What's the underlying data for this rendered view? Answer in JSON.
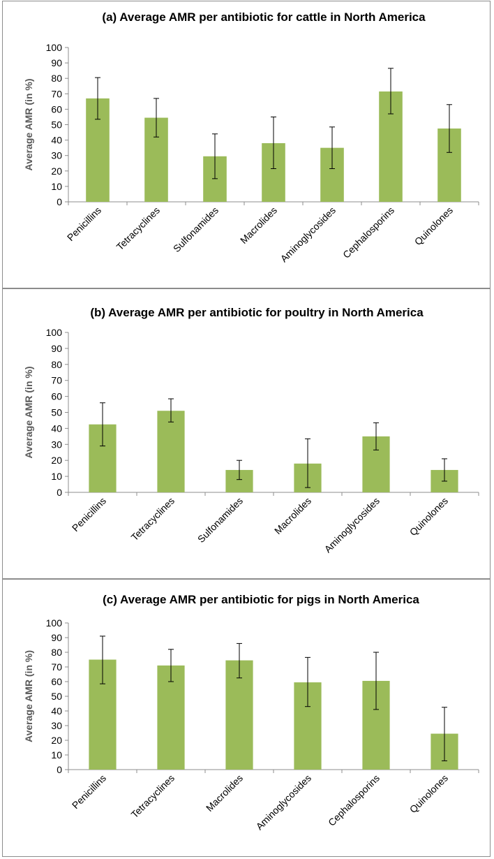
{
  "chart_data": [
    {
      "type": "bar",
      "title": "(a) Average AMR per antibiotic for cattle in North America",
      "ylabel": "Average AMR (in %)",
      "xlabel": "",
      "ylim": [
        0,
        100
      ],
      "yticks": [
        0,
        10,
        20,
        30,
        40,
        50,
        60,
        70,
        80,
        90,
        100
      ],
      "categories": [
        "Penicillins",
        "Tetracyclines",
        "Sulfonamides",
        "Macrolides",
        "Aminoglycosides",
        "Cephalosporins",
        "Quinolones"
      ],
      "values": [
        67,
        54.5,
        29.5,
        38,
        35,
        71.5,
        47.5
      ],
      "error_low": [
        53.5,
        42,
        15,
        21.5,
        21.5,
        57,
        32
      ],
      "error_high": [
        80.5,
        67,
        44,
        55,
        48.5,
        86.5,
        63
      ],
      "bar_color": "#9bbb59"
    },
    {
      "type": "bar",
      "title": "(b) Average AMR per antibiotic for poultry in North America",
      "ylabel": "Average AMR (in %)",
      "xlabel": "",
      "ylim": [
        0,
        100
      ],
      "yticks": [
        0,
        10,
        20,
        30,
        40,
        50,
        60,
        70,
        80,
        90,
        100
      ],
      "categories": [
        "Penicillins",
        "Tetracyclines",
        "Sulfonamides",
        "Macrolides",
        "Aminoglycosides",
        "Quinolones"
      ],
      "values": [
        42.5,
        51,
        14,
        18,
        35,
        14
      ],
      "error_low": [
        29,
        44,
        8,
        3,
        26.5,
        7
      ],
      "error_high": [
        56,
        58.5,
        20,
        33.5,
        43.5,
        21
      ],
      "bar_color": "#9bbb59"
    },
    {
      "type": "bar",
      "title": "(c)  Average AMR per antibiotic for pigs in North America",
      "ylabel": "Average AMR (in %)",
      "xlabel": "",
      "ylim": [
        0,
        100
      ],
      "yticks": [
        0,
        10,
        20,
        30,
        40,
        50,
        60,
        70,
        80,
        90,
        100
      ],
      "categories": [
        "Penicillins",
        "Tetracyclines",
        "Macrolides",
        "Aminoglycosides",
        "Cephalosporins",
        "Quinolones"
      ],
      "values": [
        75,
        71,
        74.5,
        59.5,
        60.5,
        24.5
      ],
      "error_low": [
        58.5,
        60,
        62.5,
        43,
        41,
        6
      ],
      "error_high": [
        91,
        82,
        86,
        76.5,
        80,
        42.5
      ],
      "bar_color": "#9bbb59"
    }
  ]
}
